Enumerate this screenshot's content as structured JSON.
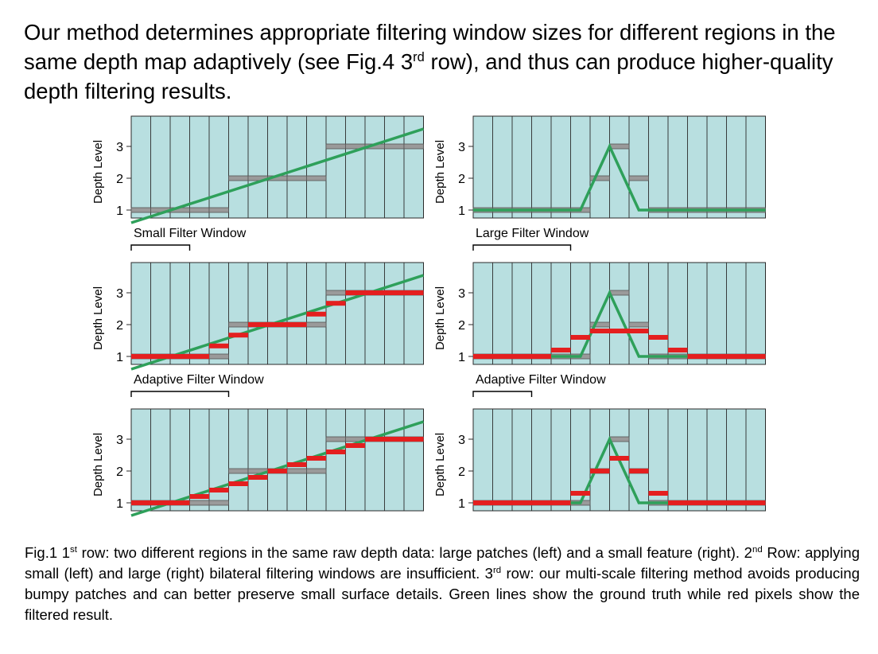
{
  "heading": {
    "part1": "Our method determines appropriate filtering window sizes for different regions in the same depth map adaptively (see Fig.4 3",
    "sup": "rd",
    "part2": " row), and thus can produce higher-quality depth filtering results."
  },
  "axis": {
    "ylabel": "Depth Level",
    "ticks": [
      "1",
      "2",
      "3"
    ]
  },
  "window_labels": {
    "small": "Small Filter Window",
    "large": "Large Filter Window",
    "adaptive": "Adaptive Filter Window"
  },
  "colors": {
    "cell_fill": "#b8dfe0",
    "grid_line": "#2a2a2a",
    "ground_truth": "#2ea05a",
    "filtered": "#e41f1f",
    "raw": "#9a9a9a"
  },
  "caption": {
    "p1": "Fig.1 1",
    "s1": "st",
    "p2": " row: two different regions in the same raw depth data: large patches (left) and a small feature (right). 2",
    "s2": "nd",
    "p3": " Row: applying small (left) and large (right) bilateral filtering windows are insufficient.  3",
    "s3": "rd",
    "p4": " row: our multi-scale filtering method avoids producing bumpy patches and can better preserve small surface details.  Green lines show the ground truth while red pixels show the filtered result."
  },
  "chart_data": [
    {
      "type": "diagram-plot",
      "row": 1,
      "col": "left",
      "ylabel": "Depth Level",
      "ground_truth": [
        [
          0,
          0.6
        ],
        [
          15,
          3.55
        ]
      ],
      "raw": [
        1,
        1,
        1,
        1,
        1,
        2,
        2,
        2,
        2,
        2,
        3,
        3,
        3,
        3,
        3
      ],
      "filtered": [],
      "window_label": "Small Filter Window",
      "window_cells": 3
    },
    {
      "type": "diagram-plot",
      "row": 1,
      "col": "right",
      "ylabel": "Depth Level",
      "ground_truth": [
        [
          0,
          1
        ],
        [
          5.5,
          1
        ],
        [
          7,
          3
        ],
        [
          8.5,
          1
        ],
        [
          15,
          1
        ]
      ],
      "raw": [
        1,
        1,
        1,
        1,
        1,
        1,
        2,
        3,
        2,
        1,
        1,
        1,
        1,
        1,
        1
      ],
      "filtered": [],
      "window_label": "Large Filter Window",
      "window_cells": 5
    },
    {
      "type": "diagram-plot",
      "row": 2,
      "col": "left",
      "ylabel": "Depth Level",
      "ground_truth": [
        [
          0,
          0.6
        ],
        [
          15,
          3.55
        ]
      ],
      "raw": [
        1,
        1,
        1,
        1,
        1,
        2,
        2,
        2,
        2,
        2,
        3,
        3,
        3,
        3,
        3
      ],
      "filtered": [
        1,
        1,
        1,
        1,
        1.33,
        1.67,
        2,
        2,
        2,
        2.33,
        2.67,
        3,
        3,
        3,
        3
      ],
      "window_label": "Adaptive Filter Window",
      "window_cells": 5
    },
    {
      "type": "diagram-plot",
      "row": 2,
      "col": "right",
      "ylabel": "Depth Level",
      "ground_truth": [
        [
          0,
          1
        ],
        [
          5.5,
          1
        ],
        [
          7,
          3
        ],
        [
          8.5,
          1
        ],
        [
          15,
          1
        ]
      ],
      "raw": [
        1,
        1,
        1,
        1,
        1,
        1,
        2,
        3,
        2,
        1,
        1,
        1,
        1,
        1,
        1
      ],
      "filtered": [
        1,
        1,
        1,
        1,
        1.2,
        1.6,
        1.8,
        1.8,
        1.8,
        1.6,
        1.2,
        1,
        1,
        1,
        1
      ],
      "window_label": "Adaptive Filter Window",
      "window_cells": 3
    },
    {
      "type": "diagram-plot",
      "row": 3,
      "col": "left",
      "ylabel": "Depth Level",
      "ground_truth": [
        [
          0,
          0.6
        ],
        [
          15,
          3.55
        ]
      ],
      "raw": [
        1,
        1,
        1,
        1,
        1,
        2,
        2,
        2,
        2,
        2,
        3,
        3,
        3,
        3,
        3
      ],
      "filtered": [
        1,
        1,
        1,
        1.2,
        1.4,
        1.6,
        1.8,
        2,
        2.2,
        2.4,
        2.6,
        2.8,
        3,
        3,
        3
      ]
    },
    {
      "type": "diagram-plot",
      "row": 3,
      "col": "right",
      "ylabel": "Depth Level",
      "ground_truth": [
        [
          0,
          1
        ],
        [
          5.5,
          1
        ],
        [
          7,
          3
        ],
        [
          8.5,
          1
        ],
        [
          15,
          1
        ]
      ],
      "raw": [
        1,
        1,
        1,
        1,
        1,
        1,
        2,
        3,
        2,
        1,
        1,
        1,
        1,
        1,
        1
      ],
      "filtered": [
        1,
        1,
        1,
        1,
        1,
        1.3,
        2,
        2.4,
        2,
        1.3,
        1,
        1,
        1,
        1,
        1
      ]
    }
  ]
}
